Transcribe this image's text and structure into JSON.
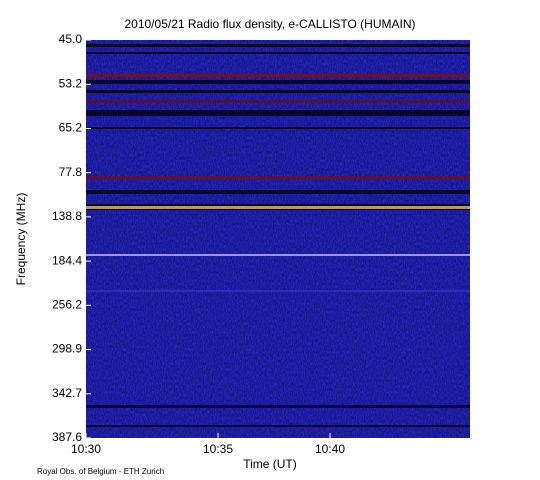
{
  "chart_data": {
    "type": "spectrogram",
    "title": "2010/05/21  Radio flux density, e-CALLISTO (HUMAIN)",
    "x_label": "Time (UT)",
    "y_label": "Frequency (MHz)",
    "xticks": [
      "10:30",
      "10:35",
      "10:40"
    ],
    "yticks": [
      45.0,
      53.2,
      65.2,
      77.8,
      138.8,
      184.4,
      256.2,
      298.9,
      342.7,
      387.6
    ],
    "footer": "Royal Obs. of Belgium - ETH Zurich"
  }
}
